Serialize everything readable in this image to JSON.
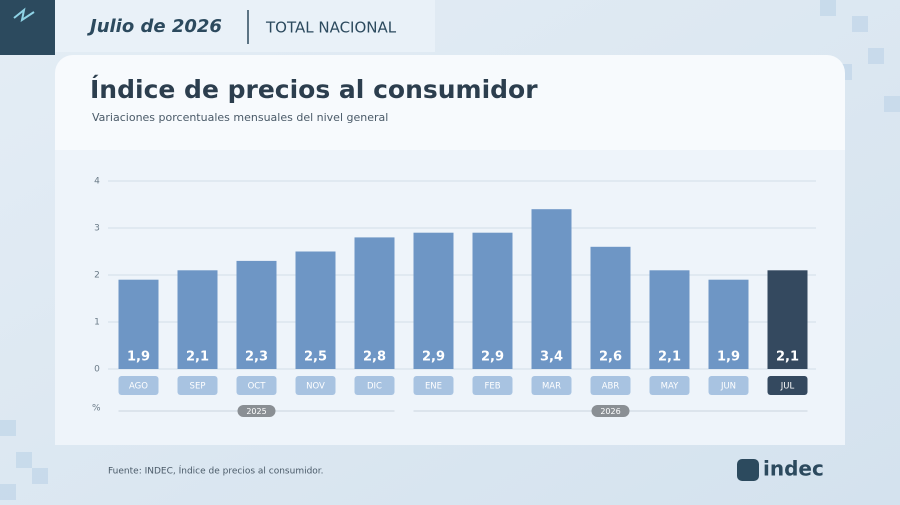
{
  "header": {
    "period": "Julio de 2026",
    "scope": "TOTAL NACIONAL"
  },
  "brand": "indec",
  "chart_data": {
    "type": "bar",
    "title": "Índice de precios al consumidor",
    "subtitle": "Variaciones porcentuales mensuales del nivel general",
    "source": "Fuente: INDEC, Índice de precios al consumidor.",
    "y_unit": "%",
    "categories": [
      "AGO",
      "SEP",
      "OCT",
      "NOV",
      "DIC",
      "ENE",
      "FEB",
      "MAR",
      "ABR",
      "MAY",
      "JUN",
      "JUL"
    ],
    "years": [
      "2025",
      "2025",
      "2025",
      "2025",
      "2025",
      "2026",
      "2026",
      "2026",
      "2026",
      "2026",
      "2026",
      "2026"
    ],
    "values": [
      1.9,
      2.1,
      2.3,
      2.5,
      2.8,
      2.9,
      2.9,
      3.4,
      2.6,
      2.1,
      1.9,
      2.1
    ],
    "value_labels": [
      "1,9",
      "2,1",
      "2,3",
      "2,5",
      "2,8",
      "2,9",
      "2,9",
      "3,4",
      "2,6",
      "2,1",
      "1,9",
      "2,1"
    ],
    "colors": [
      "#6e96c5",
      "#6e96c5",
      "#6e96c5",
      "#6e96c5",
      "#6e96c5",
      "#6e96c5",
      "#6e96c5",
      "#6e96c5",
      "#6e96c5",
      "#6e96c5",
      "#6e96c5",
      "#34495f"
    ],
    "ylim": [
      0,
      4
    ],
    "yticks": [
      0,
      1,
      2,
      3,
      4
    ],
    "grid": true
  }
}
